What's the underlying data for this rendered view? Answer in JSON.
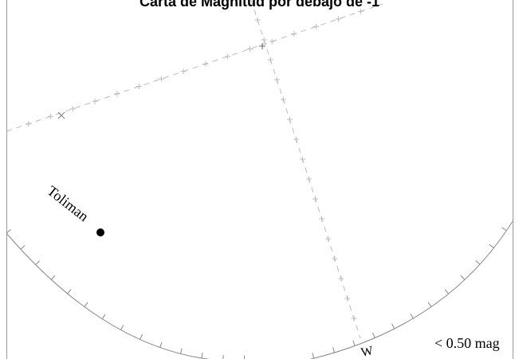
{
  "chart": {
    "title": "Carta de Magnitud por debajo de -1",
    "stars": [
      {
        "name": "Toliman"
      }
    ],
    "direction_label": "W",
    "magnitude_note": "< 0.50 mag"
  },
  "colors": {
    "background": "#ffffff",
    "frame": "#999999",
    "horizon": "#888888",
    "grid": "#aaaaaa",
    "star": "#000000"
  }
}
